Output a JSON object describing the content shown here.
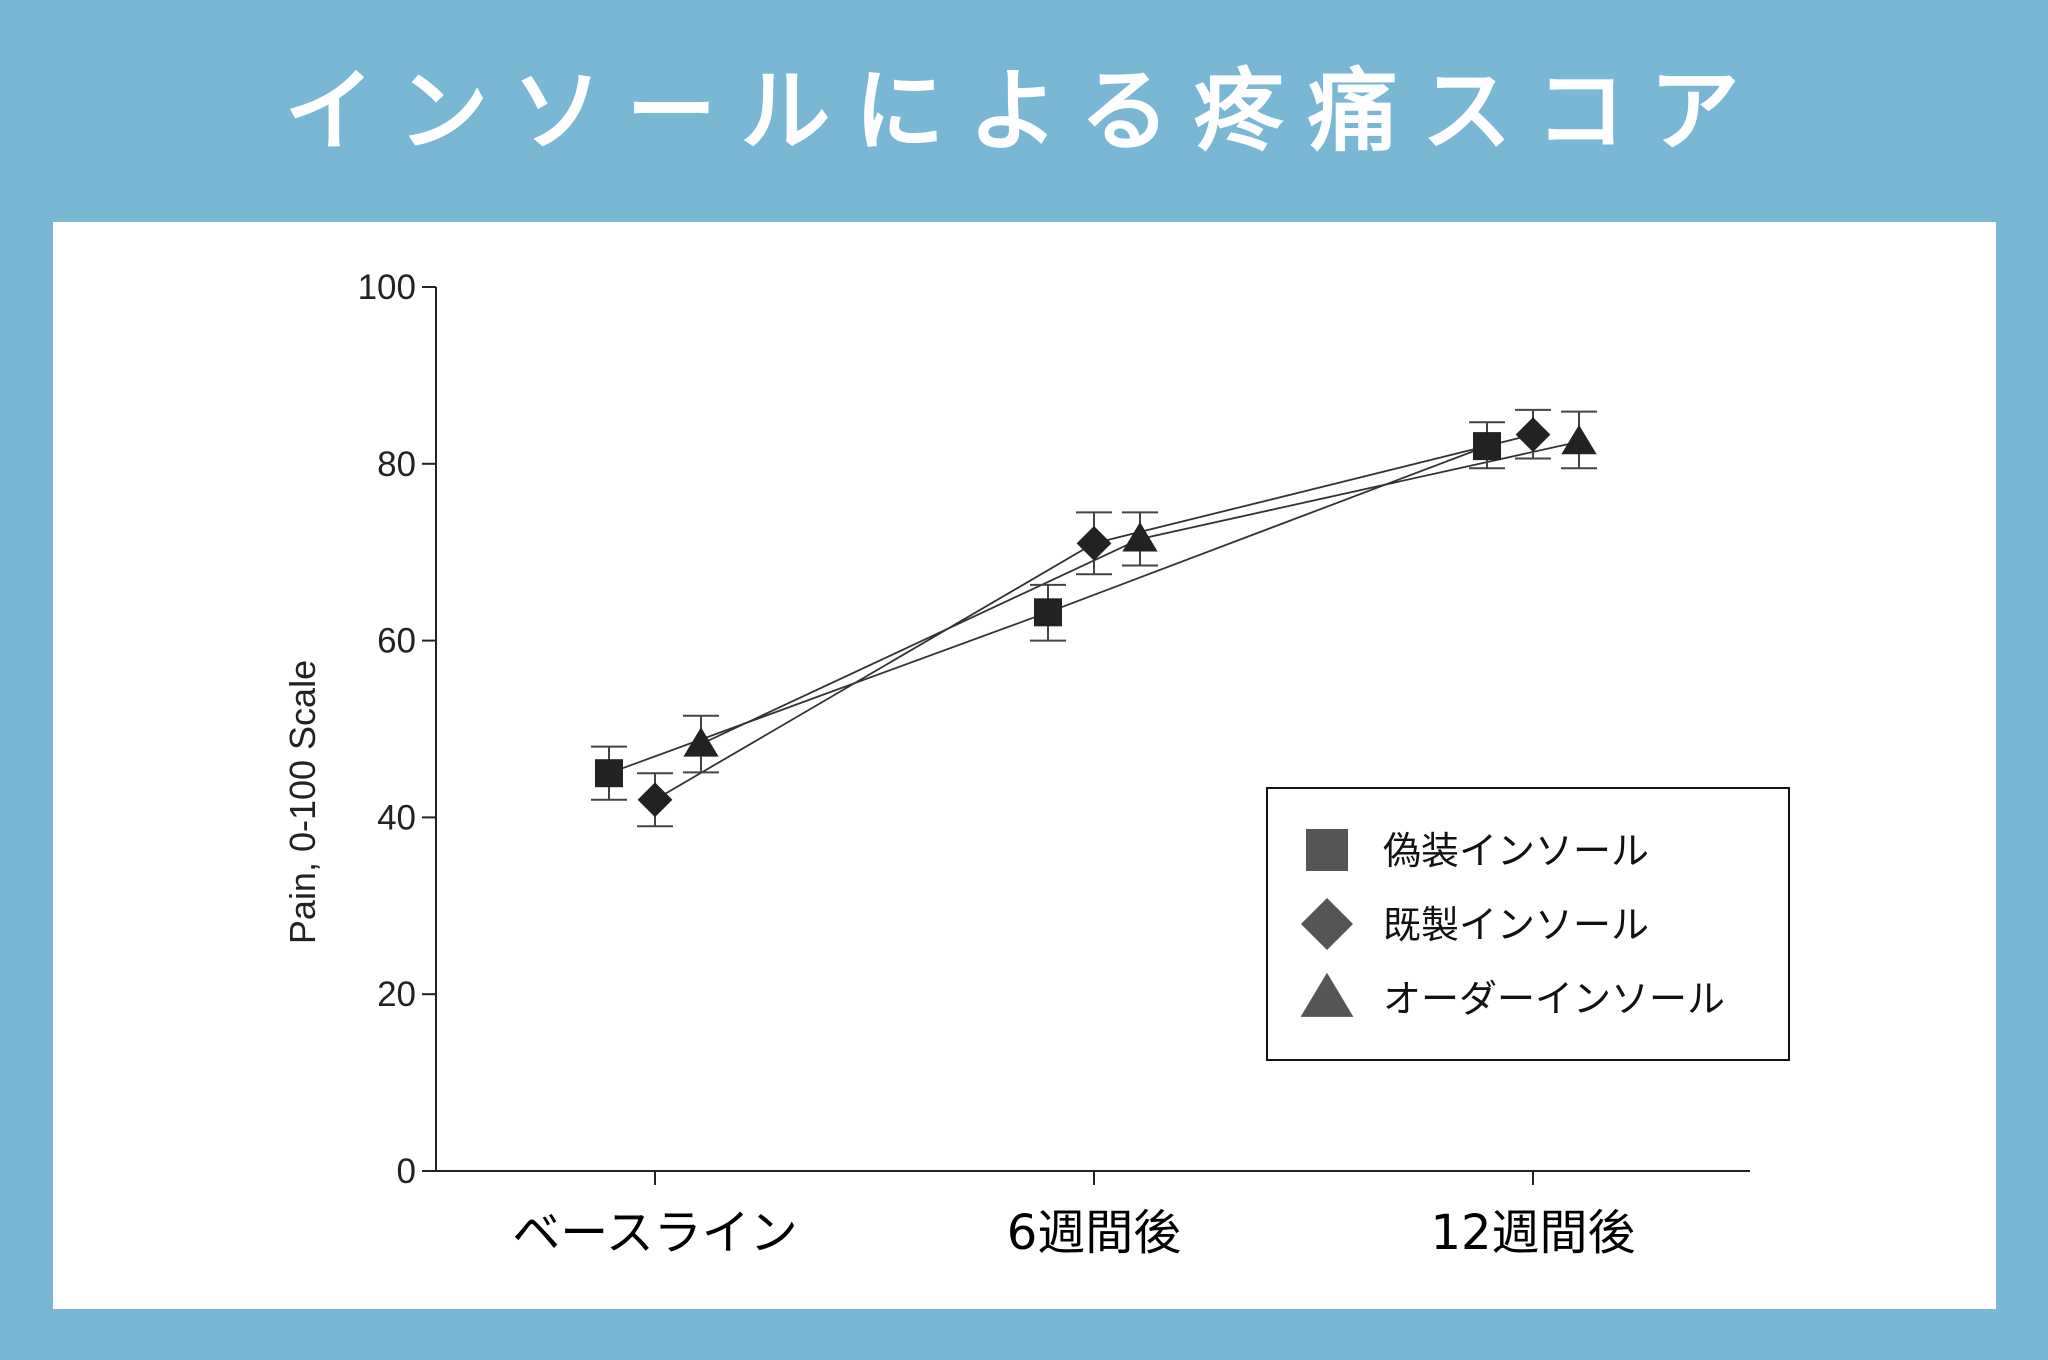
{
  "page": {
    "title": "インソールによる疼痛スコア",
    "background": "#79b7d5"
  },
  "chart_data": {
    "type": "line",
    "title": "",
    "xlabel": "",
    "ylabel": "Pain, 0-100 Scale",
    "ylim": [
      0,
      100
    ],
    "yticks": [
      0,
      20,
      40,
      60,
      80,
      100
    ],
    "categories": [
      "ベースライン",
      "6週間後",
      "12週間後"
    ],
    "series": [
      {
        "name": "偽装インソール",
        "marker": "square",
        "color": "#222222",
        "legend_color": "#555555",
        "values": [
          45,
          63.2,
          82
        ],
        "error_low": [
          42,
          60,
          79.5
        ],
        "error_high": [
          48,
          66.3,
          84.7
        ]
      },
      {
        "name": "既製インソール",
        "marker": "diamond",
        "color": "#222222",
        "legend_color": "#555555",
        "values": [
          42,
          71,
          83.3
        ],
        "error_low": [
          39,
          67.5,
          80.6
        ],
        "error_high": [
          45,
          74.5,
          86.1
        ]
      },
      {
        "name": "オーダーインソール",
        "marker": "triangle",
        "color": "#222222",
        "legend_color": "#555555",
        "values": [
          48.3,
          71.5,
          82.5
        ],
        "error_low": [
          45.1,
          68.5,
          79.5
        ],
        "error_high": [
          51.5,
          74.5,
          85.9
        ]
      }
    ],
    "grid": false,
    "legend_position": "bottom-right"
  }
}
